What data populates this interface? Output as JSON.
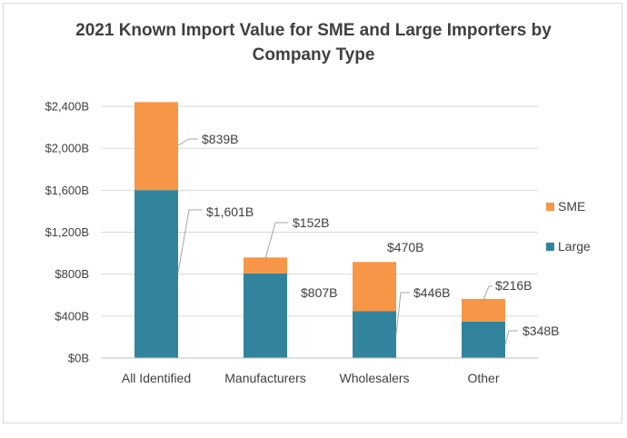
{
  "title_line1": "2021 Known Import Value for SME and Large Importers by",
  "title_line2": "Company Type",
  "chart_data": {
    "type": "bar",
    "stacked": true,
    "title": "2021 Known Import Value for SME and Large Importers by Company Type",
    "categories": [
      "All Identified",
      "Manufacturers",
      "Wholesalers",
      "Other"
    ],
    "series": [
      {
        "name": "Large",
        "color": "#31849B",
        "values": [
          1601,
          807,
          446,
          348
        ],
        "labels": [
          "$1,601B",
          "$807B",
          "$446B",
          "$348B"
        ]
      },
      {
        "name": "SME",
        "color": "#F79646",
        "values": [
          839,
          152,
          470,
          216
        ],
        "labels": [
          "$839B",
          "$152B",
          "$470B",
          "$216B"
        ]
      }
    ],
    "ylim": [
      0,
      2400
    ],
    "yticks": [
      0,
      400,
      800,
      1200,
      1600,
      2000,
      2400
    ],
    "ytick_labels": [
      "$0B",
      "$400B",
      "$800B",
      "$1,200B",
      "$1,600B",
      "$2,000B",
      "$2,400B"
    ],
    "xlabel": "",
    "ylabel": "",
    "grid": true,
    "legend": [
      "SME",
      "Large"
    ],
    "legend_position": "right"
  }
}
